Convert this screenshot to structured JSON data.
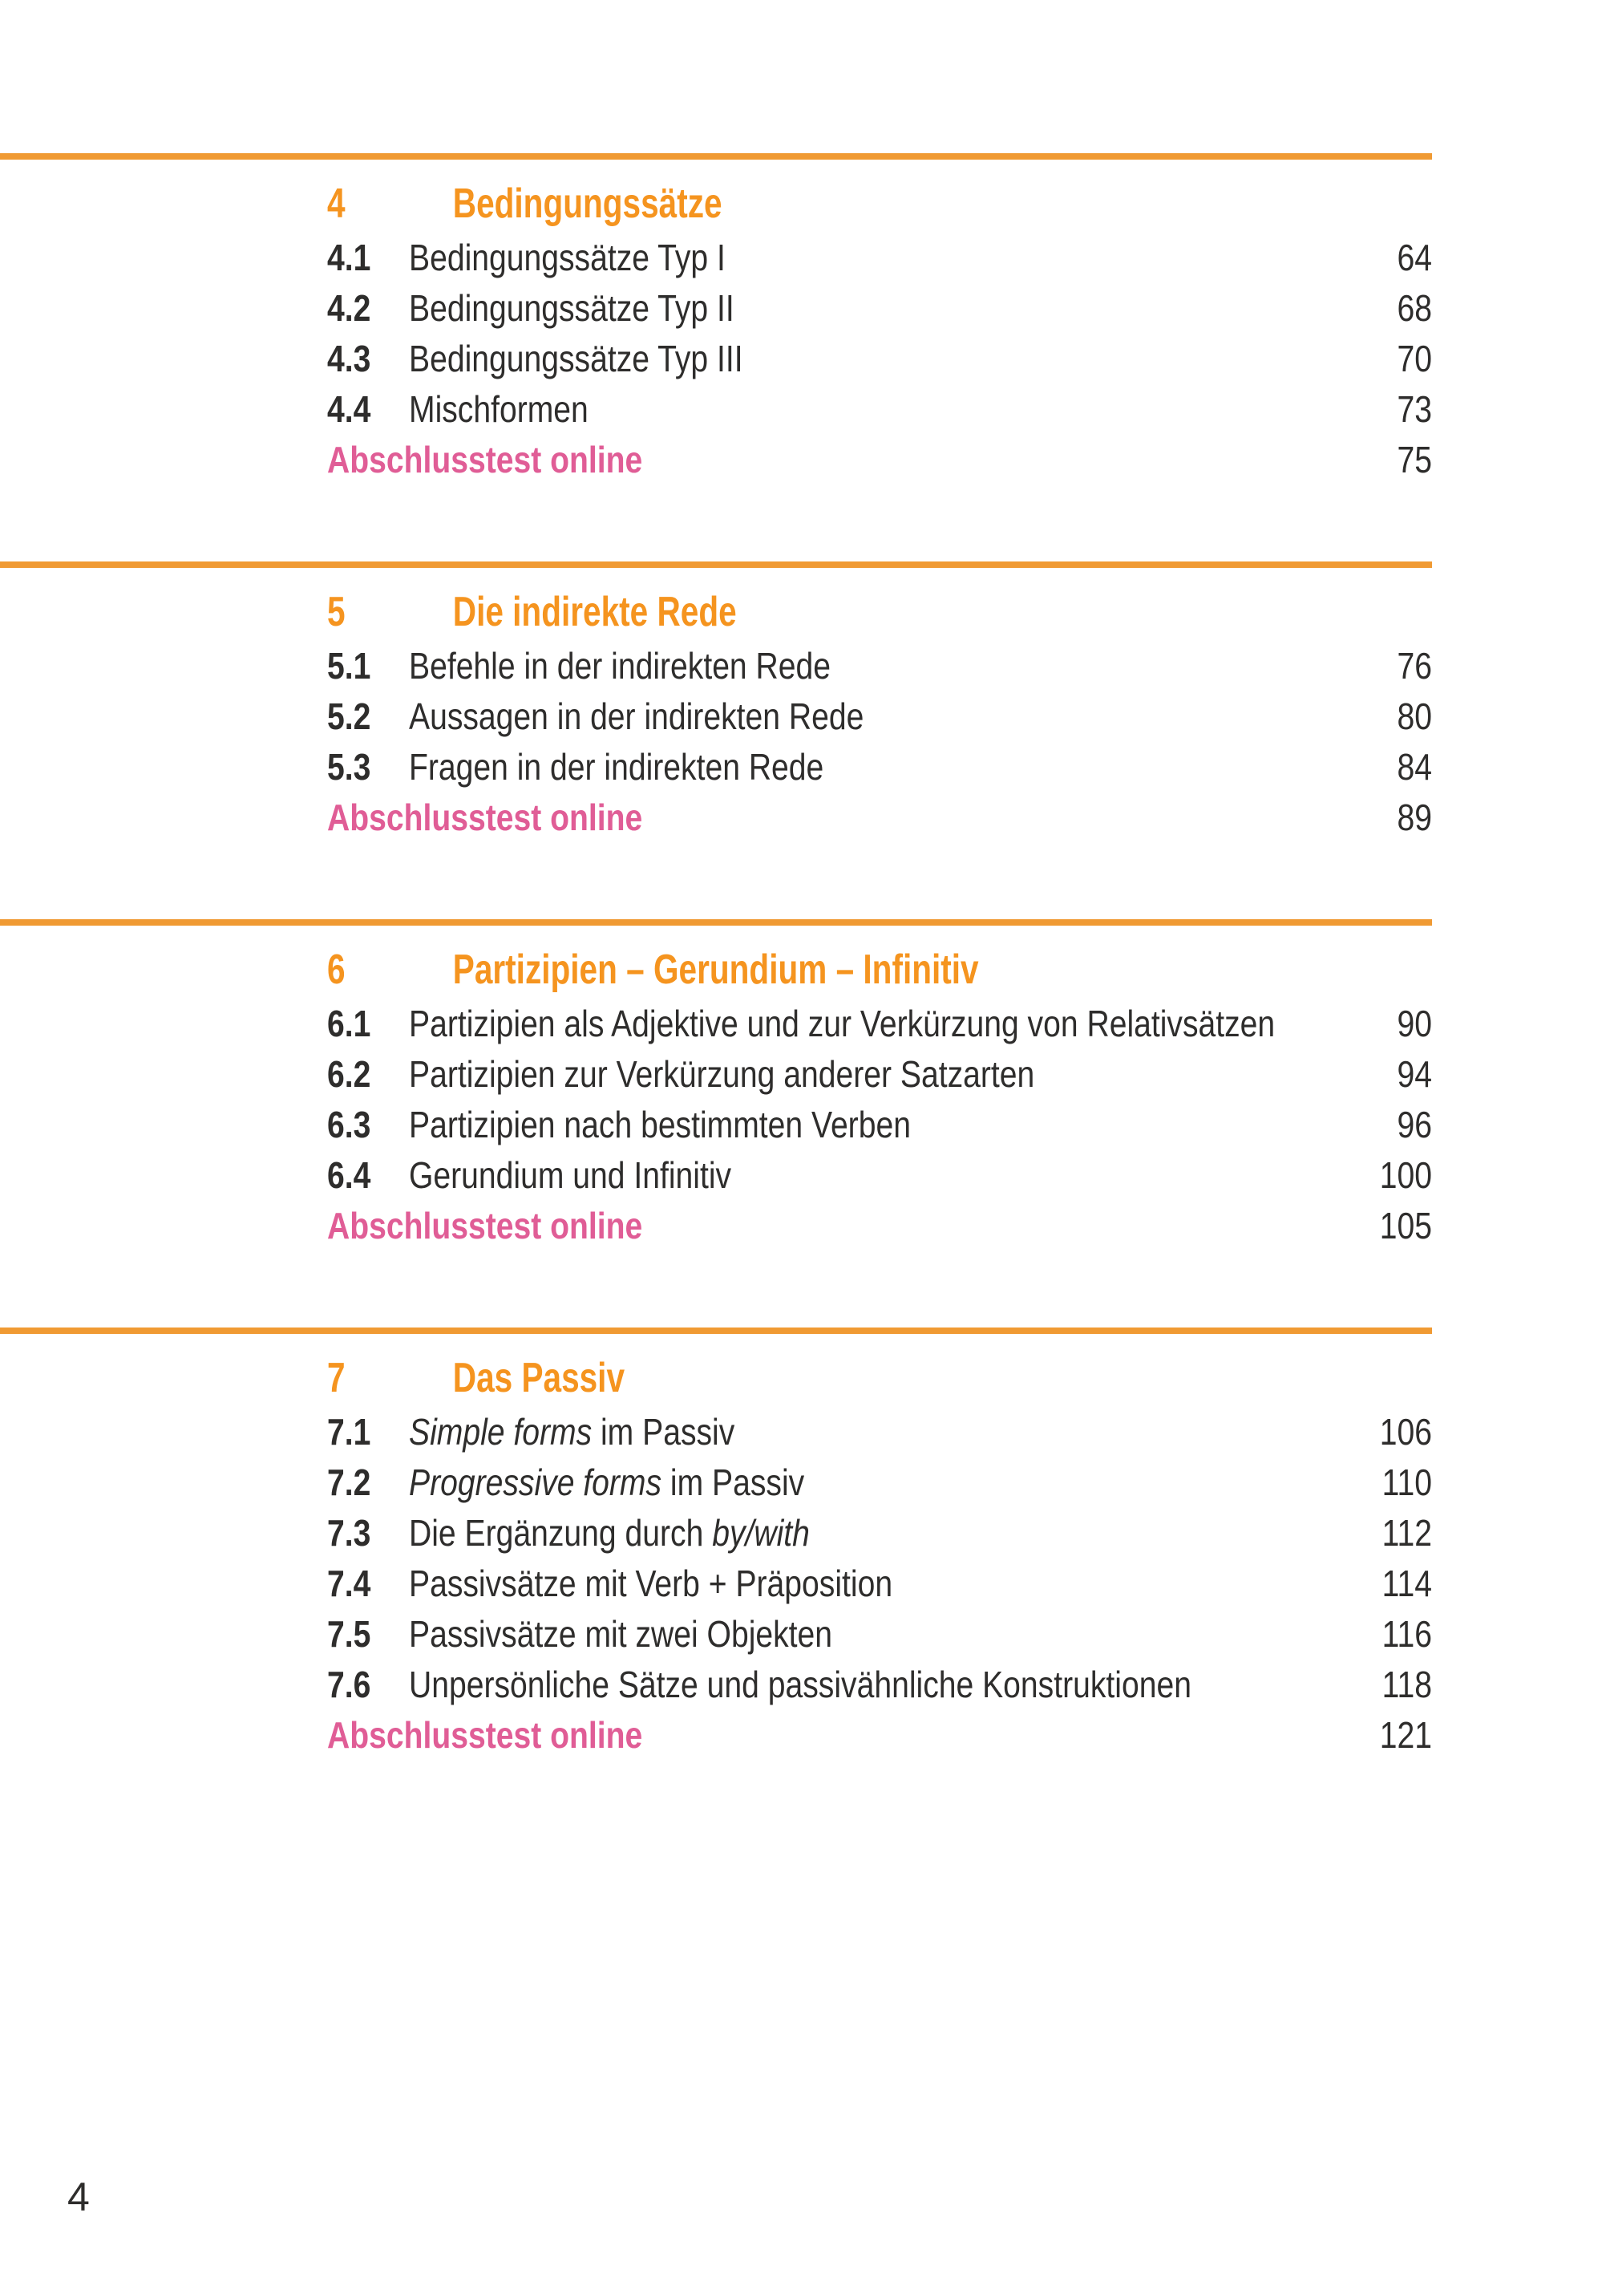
{
  "page": {
    "footer_page_number": "4"
  },
  "colors": {
    "orange_heading": "#F5941F",
    "orange_rule": "#F09A33",
    "pink_accent": "#E05D96",
    "text_ink": "#2E2D2C"
  },
  "toc": {
    "sections": [
      {
        "number": "4",
        "title": "Bedingungssätze",
        "items": [
          {
            "number": "4.1",
            "segments": [
              {
                "t": "Bedingungssätze Typ I",
                "i": false
              }
            ],
            "page": "64"
          },
          {
            "number": "4.2",
            "segments": [
              {
                "t": "Bedingungssätze Typ II",
                "i": false
              }
            ],
            "page": "68"
          },
          {
            "number": "4.3",
            "segments": [
              {
                "t": "Bedingungssätze Typ III",
                "i": false
              }
            ],
            "page": "70"
          },
          {
            "number": "4.4",
            "segments": [
              {
                "t": "Mischformen",
                "i": false
              }
            ],
            "page": "73"
          }
        ],
        "final_test": {
          "label": "Abschlusstest online",
          "page": "75"
        }
      },
      {
        "number": "5",
        "title": "Die indirekte Rede",
        "items": [
          {
            "number": "5.1",
            "segments": [
              {
                "t": "Befehle in der indirekten Rede",
                "i": false
              }
            ],
            "page": "76"
          },
          {
            "number": "5.2",
            "segments": [
              {
                "t": "Aussagen in der indirekten Rede",
                "i": false
              }
            ],
            "page": "80"
          },
          {
            "number": "5.3",
            "segments": [
              {
                "t": "Fragen in der indirekten Rede",
                "i": false
              }
            ],
            "page": "84"
          }
        ],
        "final_test": {
          "label": "Abschlusstest online",
          "page": "89"
        }
      },
      {
        "number": "6",
        "title": "Partizipien – Gerundium – Infinitiv",
        "items": [
          {
            "number": "6.1",
            "segments": [
              {
                "t": "Partizipien als Adjektive und zur Verkürzung von Relativsätzen",
                "i": false
              }
            ],
            "page": "90"
          },
          {
            "number": "6.2",
            "segments": [
              {
                "t": "Partizipien zur Verkürzung anderer Satzarten",
                "i": false
              }
            ],
            "page": "94"
          },
          {
            "number": "6.3",
            "segments": [
              {
                "t": "Partizipien nach bestimmten Verben",
                "i": false
              }
            ],
            "page": "96"
          },
          {
            "number": "6.4",
            "segments": [
              {
                "t": "Gerundium und Infinitiv",
                "i": false
              }
            ],
            "page": "100"
          }
        ],
        "final_test": {
          "label": "Abschlusstest online",
          "page": "105"
        }
      },
      {
        "number": "7",
        "title": "Das Passiv",
        "items": [
          {
            "number": "7.1",
            "segments": [
              {
                "t": "Simple forms",
                "i": true
              },
              {
                "t": " im Passiv",
                "i": false
              }
            ],
            "page": "106"
          },
          {
            "number": "7.2",
            "segments": [
              {
                "t": "Progressive forms",
                "i": true
              },
              {
                "t": " im Passiv",
                "i": false
              }
            ],
            "page": "110"
          },
          {
            "number": "7.3",
            "segments": [
              {
                "t": "Die Ergänzung durch ",
                "i": false
              },
              {
                "t": "by/with",
                "i": true
              }
            ],
            "page": "112"
          },
          {
            "number": "7.4",
            "segments": [
              {
                "t": "Passivsätze mit Verb + Präposition",
                "i": false
              }
            ],
            "page": "114"
          },
          {
            "number": "7.5",
            "segments": [
              {
                "t": "Passivsätze mit zwei Objekten",
                "i": false
              }
            ],
            "page": "116"
          },
          {
            "number": "7.6",
            "segments": [
              {
                "t": "Unpersönliche Sätze und passivähnliche Konstruktionen",
                "i": false
              }
            ],
            "page": "118"
          }
        ],
        "final_test": {
          "label": "Abschlusstest online",
          "page": "121"
        }
      }
    ]
  }
}
